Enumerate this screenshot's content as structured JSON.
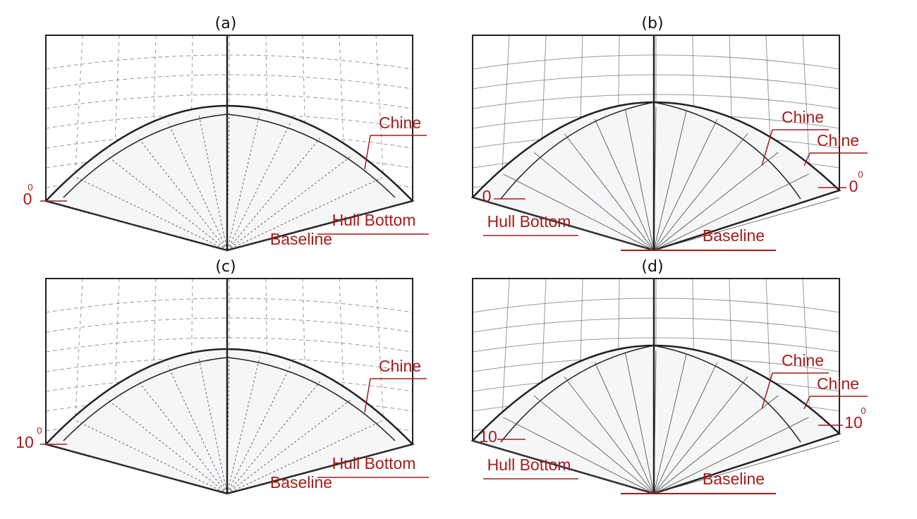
{
  "panels": [
    {
      "caption": "(a)",
      "labels": [
        "Chine",
        "Hull Bottom",
        "Baseline",
        "0",
        "0"
      ]
    },
    {
      "caption": "(b)",
      "labels": [
        "Chine",
        "Chine",
        "0",
        "Hull Bottom",
        "0",
        "0",
        "Baseline"
      ]
    },
    {
      "caption": "(c)",
      "labels": [
        "Chine",
        "Hull Bottom",
        "Baseline",
        "10",
        "0"
      ]
    },
    {
      "caption": "(d)",
      "labels": [
        "Chine",
        "Chine",
        "10",
        "Hull Bottom",
        "10",
        "0",
        "Baseline"
      ]
    }
  ]
}
